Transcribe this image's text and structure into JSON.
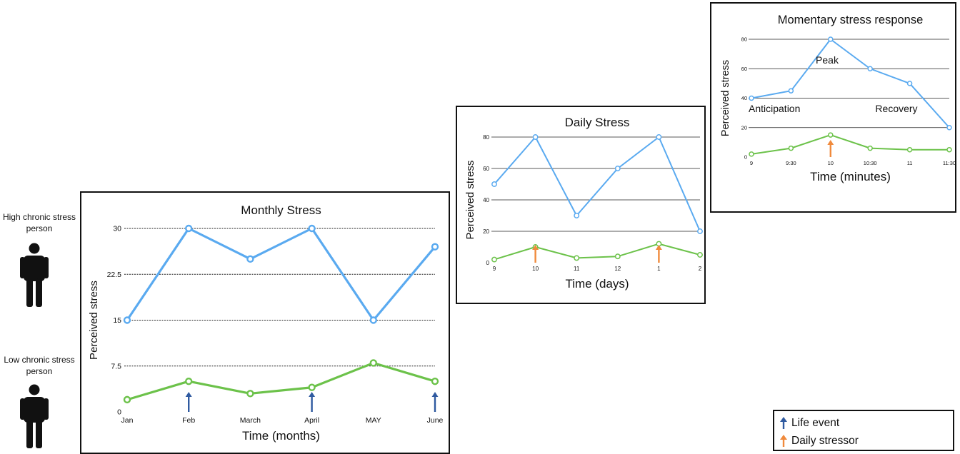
{
  "people": {
    "high_label": "High chronic stress person",
    "low_label": "Low chronic stress person"
  },
  "legend": {
    "life_event": "Life event",
    "daily_stressor": "Daily stressor",
    "life_event_color": "#2f5aa0",
    "daily_stressor_color": "#f08a3c"
  },
  "colors": {
    "high_series": "#5aaaf0",
    "low_series": "#6cc24a"
  },
  "chart_data": [
    {
      "type": "line",
      "title": "Monthly Stress",
      "xlabel": "Time (months)",
      "ylabel": "Perceived stress",
      "categories": [
        "Jan",
        "Feb",
        "March",
        "April",
        "MAY",
        "June"
      ],
      "yticks": [
        "0",
        "7.5",
        "15",
        "22.5",
        "30"
      ],
      "ytick_values": [
        0,
        7.5,
        15,
        22.5,
        30
      ],
      "ylim": [
        0,
        30
      ],
      "grid": true,
      "series": [
        {
          "values": [
            15,
            30,
            25,
            30,
            15,
            27
          ]
        },
        {
          "values": [
            2,
            5,
            3,
            4,
            8,
            5
          ]
        }
      ],
      "markers": {
        "life_event_at": [
          1,
          3,
          5
        ]
      }
    },
    {
      "type": "line",
      "title": "Daily Stress",
      "xlabel": "Time (days)",
      "ylabel": "Perceived stress",
      "categories": [
        "9",
        "10",
        "11",
        "12",
        "1",
        "2"
      ],
      "yticks": [
        "0",
        "20",
        "40",
        "60",
        "80"
      ],
      "ytick_values": [
        0,
        20,
        40,
        60,
        80
      ],
      "ylim": [
        0,
        80
      ],
      "grid": true,
      "series": [
        {
          "values": [
            50,
            80,
            30,
            60,
            80,
            20
          ]
        },
        {
          "values": [
            2,
            10,
            3,
            4,
            12,
            5
          ]
        }
      ],
      "markers": {
        "daily_stressor_at": [
          1,
          4
        ]
      }
    },
    {
      "type": "line",
      "title": "Momentary stress response",
      "xlabel": "Time (minutes)",
      "ylabel": "Perceived stress",
      "categories": [
        "9",
        "9:30",
        "10",
        "10:30",
        "11",
        "11:30"
      ],
      "yticks": [
        "0",
        "20",
        "40",
        "60",
        "80"
      ],
      "ytick_values": [
        0,
        20,
        40,
        60,
        80
      ],
      "ylim": [
        0,
        80
      ],
      "grid": true,
      "series": [
        {
          "values": [
            40,
            45,
            80,
            60,
            50,
            20
          ]
        },
        {
          "values": [
            2,
            6,
            15,
            6,
            5,
            5
          ]
        }
      ],
      "annotations": [
        "Anticipation",
        "Peak",
        "Recovery"
      ],
      "markers": {
        "daily_stressor_at": [
          2
        ]
      }
    }
  ]
}
